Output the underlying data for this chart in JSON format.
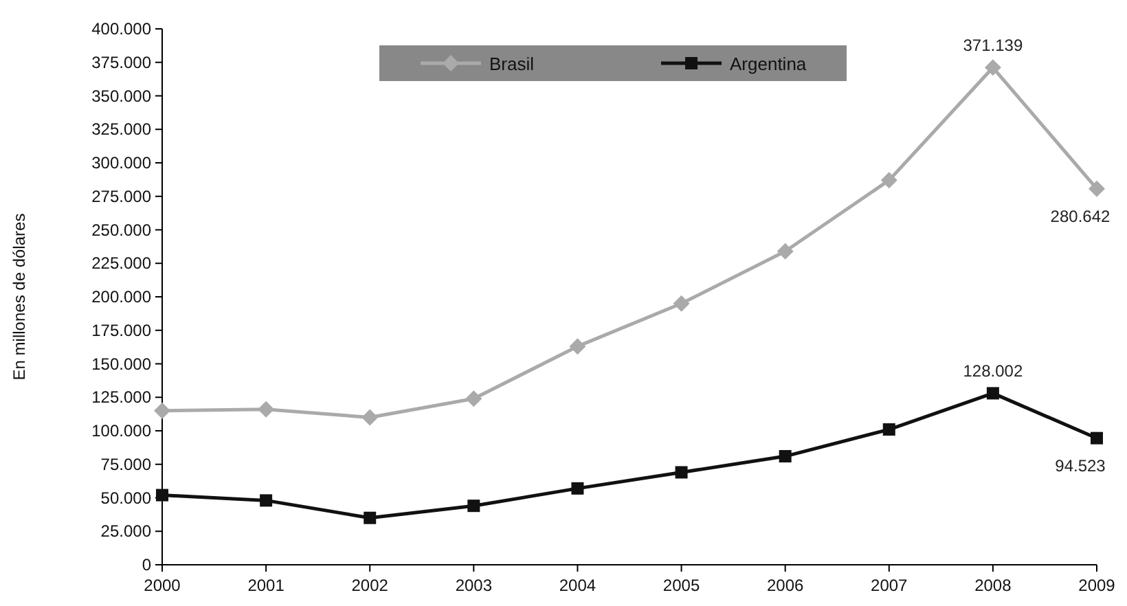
{
  "chart_data": {
    "type": "line",
    "ylabel": "En millones de dólares",
    "categories": [
      "2000",
      "2001",
      "2002",
      "2003",
      "2004",
      "2005",
      "2006",
      "2007",
      "2008",
      "2009"
    ],
    "series": [
      {
        "name": "Brasil",
        "color": "#aaaaaa",
        "marker": "diamond",
        "values": [
          115000,
          116000,
          110000,
          124000,
          163000,
          195000,
          234000,
          287000,
          371139,
          280642
        ],
        "value_labels": [
          null,
          null,
          null,
          null,
          null,
          null,
          null,
          null,
          "371.139",
          "280.642"
        ]
      },
      {
        "name": "Argentina",
        "color": "#111111",
        "marker": "square",
        "values": [
          52000,
          48000,
          35000,
          44000,
          57000,
          69000,
          81000,
          101000,
          128002,
          94523
        ],
        "value_labels": [
          null,
          null,
          null,
          null,
          null,
          null,
          null,
          null,
          "128.002",
          "94.523"
        ]
      }
    ],
    "ylim": [
      0,
      400000
    ],
    "yticks": [
      {
        "value": 0,
        "label": "0"
      },
      {
        "value": 25000,
        "label": "25.000"
      },
      {
        "value": 50000,
        "label": "50.000"
      },
      {
        "value": 75000,
        "label": "75.000"
      },
      {
        "value": 100000,
        "label": "100.000"
      },
      {
        "value": 125000,
        "label": "125.000"
      },
      {
        "value": 150000,
        "label": "150.000"
      },
      {
        "value": 175000,
        "label": "175.000"
      },
      {
        "value": 200000,
        "label": "200.000"
      },
      {
        "value": 225000,
        "label": "225.000"
      },
      {
        "value": 250000,
        "label": "250.000"
      },
      {
        "value": 275000,
        "label": "275.000"
      },
      {
        "value": 300000,
        "label": "300.000"
      },
      {
        "value": 325000,
        "label": "325.000"
      },
      {
        "value": 350000,
        "label": "350.000"
      },
      {
        "value": 375000,
        "label": "375.000"
      },
      {
        "value": 400000,
        "label": "400.000"
      }
    ],
    "legend": "top",
    "grid": false
  }
}
